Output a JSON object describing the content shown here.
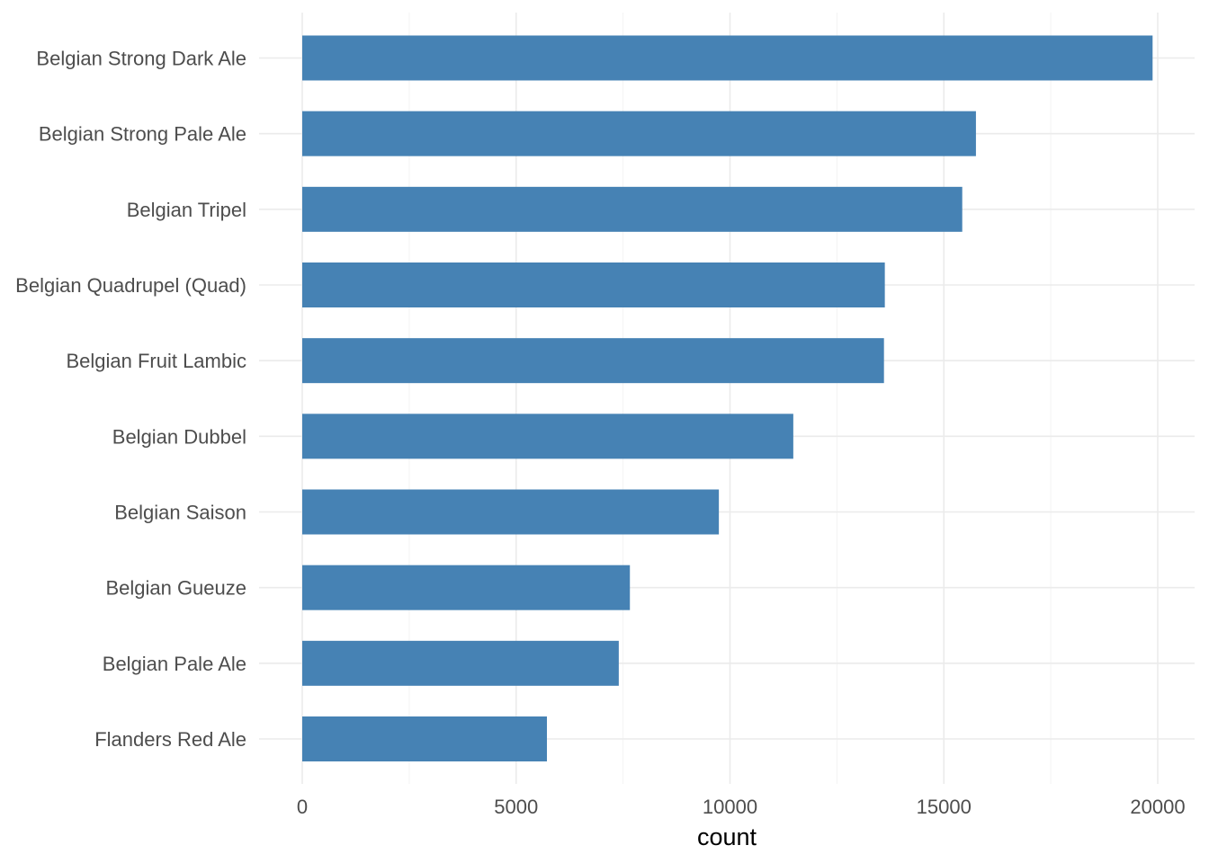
{
  "chart_data": {
    "type": "bar",
    "orientation": "horizontal",
    "categories": [
      "Belgian Strong Dark Ale",
      "Belgian Strong Pale Ale",
      "Belgian Tripel",
      "Belgian Quadrupel (Quad)",
      "Belgian Fruit Lambic",
      "Belgian Dubbel",
      "Belgian Saison",
      "Belgian Gueuze",
      "Belgian Pale Ale",
      "Flanders Red Ale"
    ],
    "values": [
      19880,
      15750,
      15430,
      13620,
      13600,
      11480,
      9740,
      7660,
      7400,
      5720
    ],
    "xlabel": "count",
    "ylabel": "",
    "x_ticks": [
      0,
      5000,
      10000,
      15000,
      20000
    ],
    "xlim": [
      -1000,
      20900
    ],
    "grid": true,
    "bar_color": "#4682b4"
  }
}
